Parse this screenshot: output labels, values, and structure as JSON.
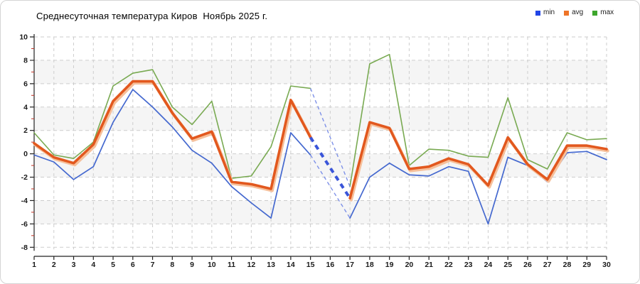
{
  "header": {
    "title": "Среднесуточная температура Киров  Ноябрь 2025 г."
  },
  "legend": {
    "items": [
      {
        "label": "min",
        "color": "#2145e6"
      },
      {
        "label": "avg",
        "color": "#ee7428"
      },
      {
        "label": "max",
        "color": "#3da62c"
      }
    ]
  },
  "chart_data": {
    "type": "line",
    "title": "Среднесуточная температура Киров  Ноябрь 2025 г.",
    "xlabel": "",
    "ylabel": "",
    "categories": [
      1,
      2,
      3,
      4,
      5,
      6,
      7,
      8,
      9,
      10,
      11,
      12,
      13,
      14,
      15,
      16,
      17,
      18,
      19,
      20,
      21,
      22,
      23,
      24,
      25,
      26,
      27,
      28,
      29,
      30
    ],
    "series": [
      {
        "name": "min",
        "values": [
          -0.1,
          -0.7,
          -2.2,
          -1.1,
          2.7,
          5.5,
          4.0,
          2.3,
          0.3,
          -0.8,
          -2.8,
          -4.2,
          -5.5,
          1.8,
          -0.1,
          null,
          -5.5,
          -2.0,
          -0.8,
          -1.8,
          -1.9,
          -1.1,
          -1.5,
          -6.0,
          -0.3,
          -1.0,
          -2.4,
          0.1,
          0.2,
          -0.5
        ]
      },
      {
        "name": "avg",
        "values": [
          0.9,
          -0.3,
          -0.8,
          0.8,
          4.5,
          6.2,
          6.2,
          3.5,
          1.3,
          1.9,
          -2.4,
          -2.6,
          -3.0,
          4.6,
          1.4,
          null,
          -3.8,
          2.7,
          2.2,
          -1.3,
          -1.1,
          -0.4,
          -0.9,
          -2.7,
          1.4,
          -0.9,
          -2.2,
          0.7,
          0.7,
          0.4
        ]
      },
      {
        "name": "max",
        "values": [
          1.8,
          -0.1,
          -0.4,
          1.0,
          5.8,
          6.9,
          7.2,
          4.0,
          2.5,
          4.5,
          -2.1,
          -1.9,
          0.6,
          5.8,
          5.6,
          null,
          -2.8,
          7.7,
          8.5,
          -1.0,
          0.4,
          0.3,
          -0.2,
          -0.3,
          4.8,
          -0.5,
          -1.3,
          1.8,
          1.2,
          1.3
        ]
      }
    ],
    "gap": {
      "between_days": [
        15,
        17
      ],
      "style": "dashed-blue-connectors",
      "missing_day": 16
    },
    "ylim": [
      -8,
      10
    ],
    "ytick_major": 2,
    "ytick_minor": 1,
    "grid": "dashed",
    "background_bands": true,
    "legend_position": "top-right",
    "colors": {
      "min_line": "#4468cf",
      "avg_line": "#e2581e",
      "avg_shadow": "#f6c09b",
      "max_line": "#79aa52",
      "dashed_thin": "#7e91e8",
      "dashed_thick": "#3a55d9",
      "grid": "#cdcdcd",
      "band": "#f5f5f5",
      "axis": "#222222",
      "minor_tick": "#c03022"
    }
  }
}
